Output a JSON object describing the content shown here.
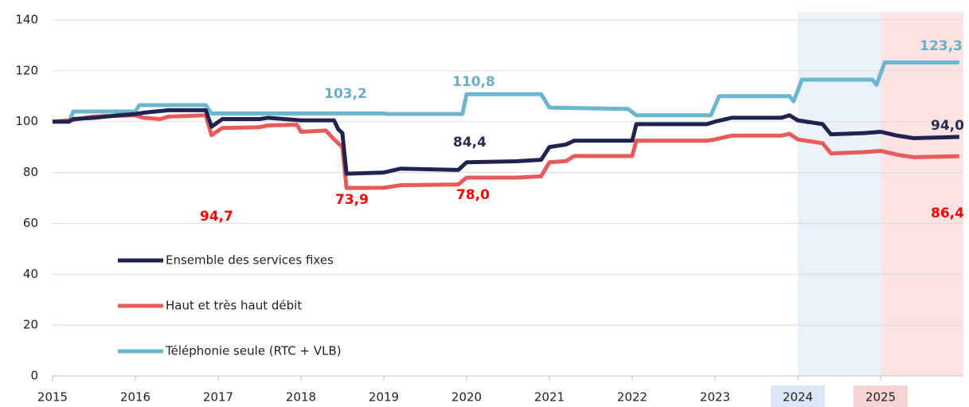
{
  "chart_data": {
    "type": "line",
    "xlim": [
      2015,
      2026
    ],
    "xticks": [
      2015,
      2016,
      2017,
      2018,
      2019,
      2020,
      2021,
      2022,
      2023,
      2024,
      2025
    ],
    "ylim": [
      0,
      140
    ],
    "yticks": [
      0,
      20,
      40,
      60,
      80,
      100,
      120,
      140
    ],
    "grid": true,
    "legend": "left",
    "highlights": [
      {
        "from": 2024,
        "to": 2025,
        "color": "#eaf1fb"
      },
      {
        "from": 2025,
        "to": 2026,
        "color": "#fbe3e3"
      }
    ],
    "series": [
      {
        "name": "Ensemble des services fixes",
        "color": "#20234f",
        "x": [
          2015,
          2015.2,
          2015.25,
          2015.5,
          2015.8,
          2016,
          2016.1,
          2016.4,
          2016.85,
          2016.92,
          2017.05,
          2017.5,
          2017.6,
          2018,
          2018.4,
          2018.45,
          2018.5,
          2018.55,
          2019,
          2019.2,
          2019.9,
          2020,
          2020.6,
          2020.9,
          2021,
          2021.2,
          2021.3,
          2022,
          2022.05,
          2022.9,
          2023,
          2023.2,
          2023.8,
          2023.9,
          2024,
          2024.3,
          2024.4,
          2024.8,
          2025,
          2025.2,
          2025.4,
          2025.95
        ],
        "values": [
          100,
          100,
          101,
          101.5,
          102.5,
          103,
          103.5,
          104.5,
          104.5,
          98,
          101,
          101,
          101.5,
          100.5,
          100.5,
          97,
          95.5,
          79.5,
          80,
          81.5,
          81,
          84,
          84.4,
          85,
          90,
          91,
          92.5,
          92.5,
          99,
          99,
          100,
          101.5,
          101.5,
          102.5,
          100.5,
          99,
          95,
          95.5,
          96,
          94.5,
          93.5,
          94.0
        ]
      },
      {
        "name": "Haut et très haut débit",
        "color": "#e85b5b",
        "x": [
          2015,
          2015.2,
          2015.3,
          2015.5,
          2016,
          2016.1,
          2016.3,
          2016.4,
          2016.85,
          2016.92,
          2017.05,
          2017.5,
          2017.6,
          2017.95,
          2018,
          2018.3,
          2018.4,
          2018.5,
          2018.55,
          2019,
          2019.2,
          2019.9,
          2020,
          2020.6,
          2020.9,
          2021,
          2021.2,
          2021.3,
          2022,
          2022.05,
          2022.9,
          2023,
          2023.2,
          2023.8,
          2023.9,
          2024,
          2024.3,
          2024.4,
          2024.8,
          2025,
          2025.2,
          2025.4,
          2025.95
        ],
        "values": [
          100,
          100.5,
          101,
          102,
          102.5,
          101.5,
          101,
          102,
          102.5,
          94.7,
          97.5,
          97.8,
          98.5,
          98.8,
          96,
          96.5,
          93,
          90,
          73.9,
          74,
          75,
          75.3,
          78.0,
          78,
          78.5,
          84,
          84.5,
          86.5,
          86.5,
          92.5,
          92.5,
          93,
          94.5,
          94.5,
          95.2,
          93,
          91.5,
          87.5,
          88,
          88.5,
          87,
          86,
          86.4
        ]
      },
      {
        "name": "Téléphonie seule (RTC + VLB)",
        "color": "#6cb6cf",
        "x": [
          2015,
          2015.2,
          2015.25,
          2016,
          2016.05,
          2016.85,
          2016.92,
          2019,
          2019.05,
          2019.95,
          2020,
          2020.9,
          2021,
          2021.95,
          2022.05,
          2022.95,
          2023.05,
          2023.9,
          2023.95,
          2024.05,
          2024.9,
          2024.95,
          2025.05,
          2025.95
        ],
        "values": [
          100,
          100,
          104,
          104,
          106.5,
          106.5,
          103.2,
          103.2,
          103,
          103,
          110.8,
          110.8,
          105.5,
          105,
          102.5,
          102.5,
          110,
          110,
          108,
          116.5,
          116.5,
          114.5,
          123.3,
          123.3
        ]
      }
    ],
    "annotations": [
      {
        "text": "94,7",
        "x": 2016.92,
        "y": 94.7,
        "color": "#ff0000"
      },
      {
        "text": "103,2",
        "x": 2016.92,
        "y": 103.2,
        "color": "#6aaec8"
      },
      {
        "text": "110,8",
        "x": 2020,
        "y": 110.8,
        "color": "#6aaec8"
      },
      {
        "text": "84,4",
        "x": 2020.6,
        "y": 84.4,
        "color": "#2a2d50"
      },
      {
        "text": "73,9",
        "x": 2018.55,
        "y": 73.9,
        "color": "#ff0000"
      },
      {
        "text": "78,0",
        "x": 2020,
        "y": 78.0,
        "color": "#ff0000"
      },
      {
        "text": "123,3",
        "x": 2025.95,
        "y": 123.3,
        "color": "#6aaec8"
      },
      {
        "text": "94,0",
        "x": 2025.95,
        "y": 94.0,
        "color": "#2a2d50"
      },
      {
        "text": "86,4",
        "x": 2025.95,
        "y": 86.4,
        "color": "#ff0000"
      }
    ]
  }
}
